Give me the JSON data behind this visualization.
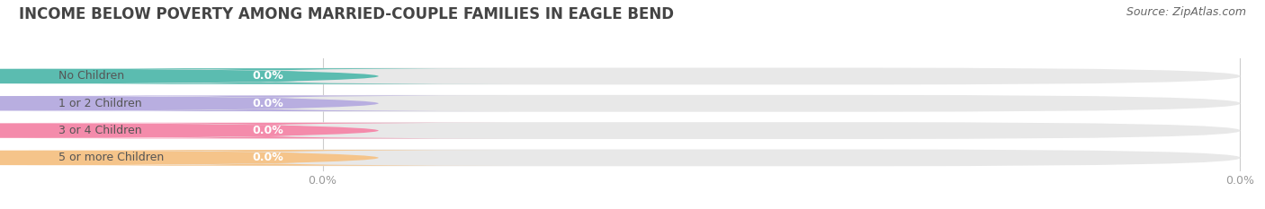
{
  "title": "INCOME BELOW POVERTY AMONG MARRIED-COUPLE FAMILIES IN EAGLE BEND",
  "source": "Source: ZipAtlas.com",
  "categories": [
    "No Children",
    "1 or 2 Children",
    "3 or 4 Children",
    "5 or more Children"
  ],
  "values": [
    0.0,
    0.0,
    0.0,
    0.0
  ],
  "bar_colors": [
    "#5bbcb0",
    "#b8aee0",
    "#f48bab",
    "#f5c48a"
  ],
  "bar_bg_color": "#e8e8e8",
  "white_pill_color": "#ffffff",
  "background_color": "#ffffff",
  "title_fontsize": 12,
  "source_fontsize": 9,
  "tick_fontsize": 9,
  "bar_label_fontsize": 9,
  "category_fontsize": 9
}
